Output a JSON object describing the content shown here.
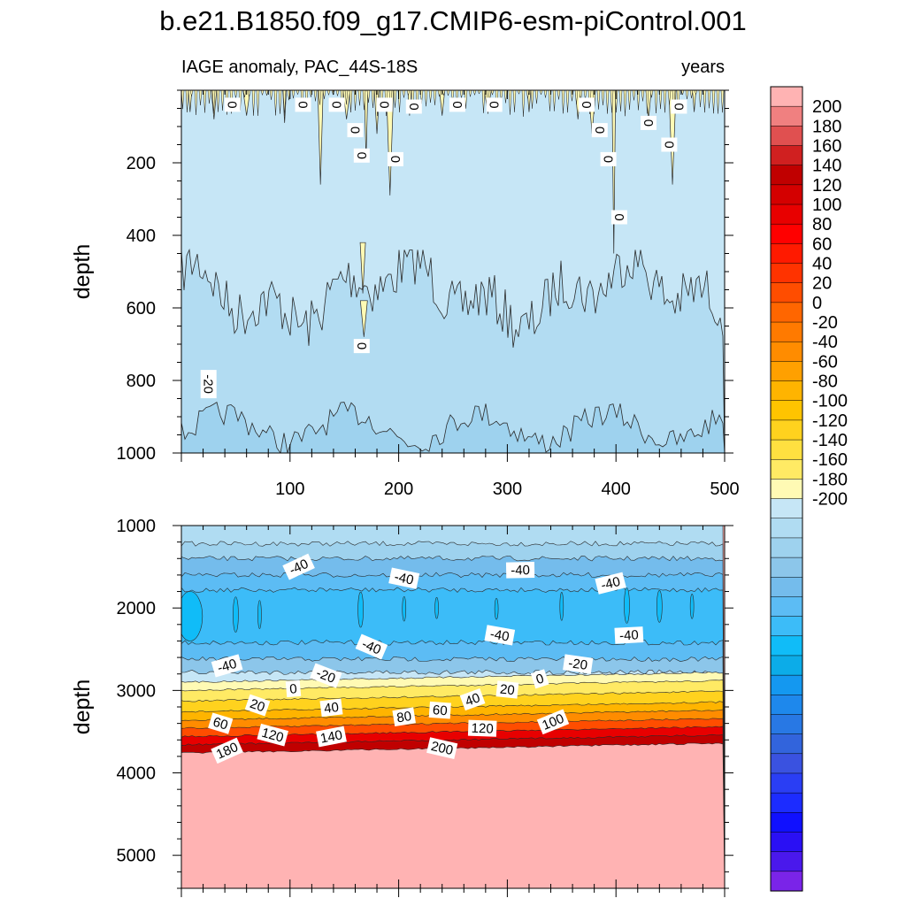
{
  "title": "b.e21.B1850.f09_g17.CMIP6-esm-piControl.001",
  "subtitle_left": "IAGE anomaly, PAC_44S-18S",
  "subtitle_right": "years",
  "chart_data": [
    {
      "type": "heatmap",
      "name": "upper-panel",
      "variable": "IAGE anomaly",
      "region": "PAC_44S-18S",
      "units": "years",
      "xlabel": "",
      "ylabel": "depth",
      "xlim": [
        0,
        500
      ],
      "ylim": [
        1000,
        0
      ],
      "xticks": [
        100,
        200,
        300,
        400,
        500
      ],
      "yticks": [
        200,
        400,
        600,
        800,
        1000
      ],
      "contour_labels": [
        {
          "text": "0",
          "x": 47,
          "y": 40
        },
        {
          "text": "0",
          "x": 112,
          "y": 40
        },
        {
          "text": "0",
          "x": 143,
          "y": 40
        },
        {
          "text": "0",
          "x": 187,
          "y": 40
        },
        {
          "text": "0",
          "x": 214,
          "y": 45
        },
        {
          "text": "0",
          "x": 254,
          "y": 40
        },
        {
          "text": "0",
          "x": 288,
          "y": 40
        },
        {
          "text": "0",
          "x": 373,
          "y": 40
        },
        {
          "text": "0",
          "x": 458,
          "y": 45
        },
        {
          "text": "0",
          "x": 160,
          "y": 110
        },
        {
          "text": "0",
          "x": 385,
          "y": 110
        },
        {
          "text": "0",
          "x": 430,
          "y": 90
        },
        {
          "text": "0",
          "x": 449,
          "y": 150
        },
        {
          "text": "0",
          "x": 166,
          "y": 180
        },
        {
          "text": "0",
          "x": 197,
          "y": 190
        },
        {
          "text": "0",
          "x": 393,
          "y": 190
        },
        {
          "text": "0",
          "x": 403,
          "y": 350
        },
        {
          "text": "0",
          "x": 166,
          "y": 705
        },
        {
          "text": "-20",
          "x": 25,
          "y": 810
        }
      ]
    },
    {
      "type": "heatmap",
      "name": "lower-panel",
      "variable": "IAGE anomaly",
      "units": "years",
      "xlabel": "",
      "ylabel": "depth",
      "xlim": [
        0,
        500
      ],
      "ylim": [
        5400,
        1000
      ],
      "yticks": [
        1000,
        2000,
        3000,
        4000,
        5000
      ],
      "contour_labels": [
        {
          "text": "-40",
          "x": 108,
          "y": 1500
        },
        {
          "text": "-40",
          "x": 205,
          "y": 1640
        },
        {
          "text": "-40",
          "x": 312,
          "y": 1540
        },
        {
          "text": "-40",
          "x": 395,
          "y": 1700
        },
        {
          "text": "-40",
          "x": 175,
          "y": 2470
        },
        {
          "text": "-40",
          "x": 293,
          "y": 2330
        },
        {
          "text": "-40",
          "x": 412,
          "y": 2330
        },
        {
          "text": "-40",
          "x": 42,
          "y": 2700
        },
        {
          "text": "-20",
          "x": 133,
          "y": 2820
        },
        {
          "text": "-20",
          "x": 365,
          "y": 2680
        },
        {
          "text": "0",
          "x": 103,
          "y": 2980
        },
        {
          "text": "0",
          "x": 330,
          "y": 2860
        },
        {
          "text": "20",
          "x": 70,
          "y": 3180
        },
        {
          "text": "20",
          "x": 300,
          "y": 2990
        },
        {
          "text": "40",
          "x": 138,
          "y": 3210
        },
        {
          "text": "40",
          "x": 268,
          "y": 3110
        },
        {
          "text": "60",
          "x": 36,
          "y": 3400
        },
        {
          "text": "60",
          "x": 238,
          "y": 3240
        },
        {
          "text": "80",
          "x": 205,
          "y": 3320
        },
        {
          "text": "100",
          "x": 342,
          "y": 3380
        },
        {
          "text": "120",
          "x": 84,
          "y": 3540
        },
        {
          "text": "120",
          "x": 277,
          "y": 3460
        },
        {
          "text": "140",
          "x": 138,
          "y": 3560
        },
        {
          "text": "180",
          "x": 42,
          "y": 3730
        },
        {
          "text": "200",
          "x": 240,
          "y": 3700
        }
      ]
    }
  ],
  "colorbar": {
    "levels": [
      -200,
      -190,
      -180,
      -170,
      -160,
      -150,
      -140,
      -130,
      -120,
      -110,
      -100,
      -90,
      -80,
      -70,
      -60,
      -50,
      -40,
      -30,
      -20,
      -10,
      0,
      10,
      20,
      30,
      40,
      50,
      60,
      70,
      80,
      90,
      100,
      110,
      120,
      130,
      140,
      150,
      160,
      170,
      180,
      190,
      200
    ],
    "tick_labels": [
      "200",
      "180",
      "160",
      "140",
      "120",
      "100",
      "80",
      "60",
      "40",
      "20",
      "0",
      "-20",
      "-40",
      "-60",
      "-80",
      "-100",
      "-120",
      "-140",
      "-160",
      "-180",
      "-200"
    ],
    "colors_top_to_bottom": [
      "#ffb3b3",
      "#f08080",
      "#e05050",
      "#d02020",
      "#c00000",
      "#d40000",
      "#e80000",
      "#ff0000",
      "#ff1a00",
      "#ff3300",
      "#ff4d00",
      "#ff6600",
      "#ff7a00",
      "#ff8c00",
      "#ffa000",
      "#ffb400",
      "#ffc400",
      "#ffd21e",
      "#ffe040",
      "#ffea64",
      "#fffab4",
      "#c6e6f6",
      "#b0dcf2",
      "#9ed2ee",
      "#8cc6ea",
      "#74bcec",
      "#5cbcf4",
      "#3cbcf8",
      "#10bcf8",
      "#0cace8",
      "#1498f0",
      "#1e88ec",
      "#2878e4",
      "#3264dc",
      "#3a52e0",
      "#2a3ef4",
      "#1c2cff",
      "#1010ff",
      "#2a10f4",
      "#4a18ec",
      "#7a24e8"
    ]
  }
}
